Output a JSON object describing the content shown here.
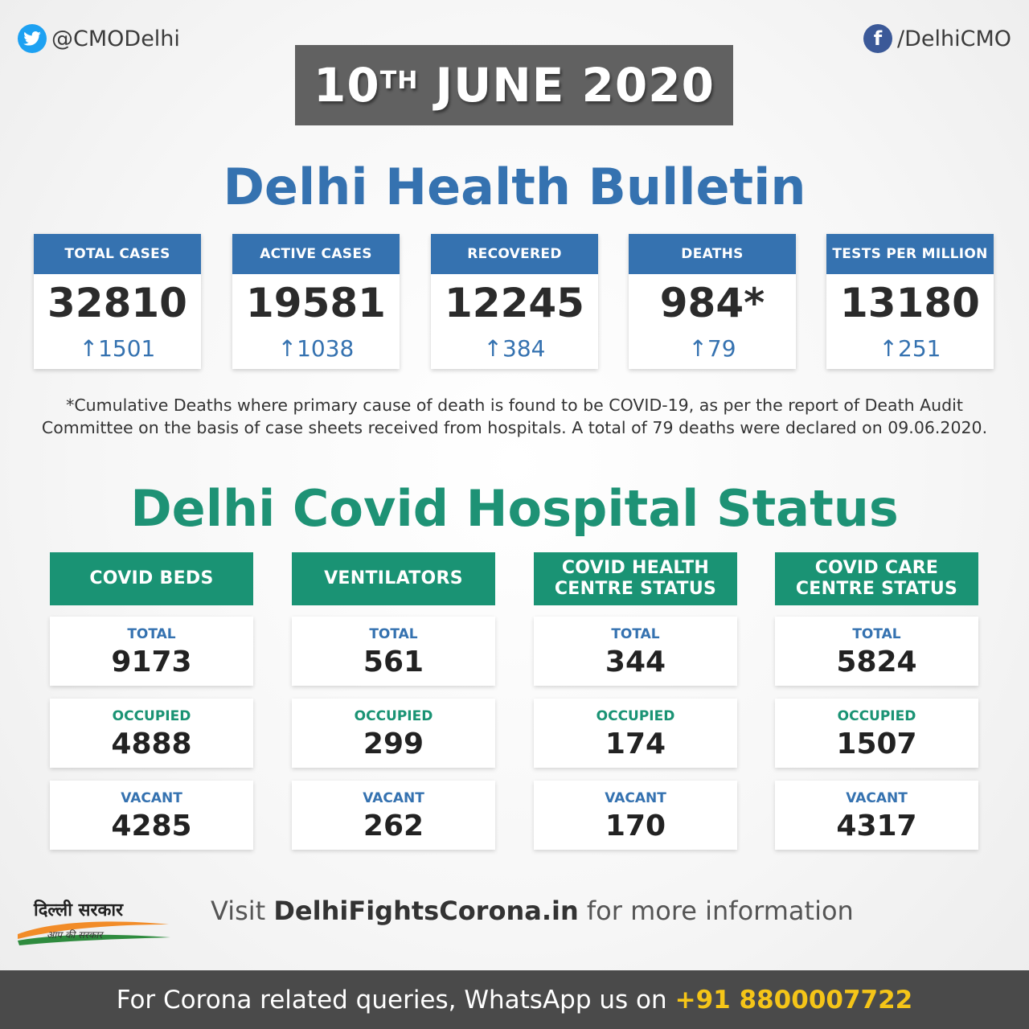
{
  "header": {
    "twitter_handle": "@CMODelhi",
    "facebook_handle": "/DelhiCMO",
    "twitter_icon": "twitter-icon",
    "facebook_icon": "facebook-icon"
  },
  "date": {
    "day": "10",
    "suffix": "TH",
    "month_year": "JUNE 2020"
  },
  "bulletin": {
    "title": "Delhi Health Bulletin",
    "arrow": "↑",
    "stats": [
      {
        "label": "TOTAL CASES",
        "value": "32810",
        "delta": "1501"
      },
      {
        "label": "ACTIVE CASES",
        "value": "19581",
        "delta": "1038"
      },
      {
        "label": "RECOVERED",
        "value": "12245",
        "delta": "384"
      },
      {
        "label": "DEATHS",
        "value": "984*",
        "delta": "79"
      },
      {
        "label": "TESTS PER MILLION",
        "value": "13180",
        "delta": "251"
      }
    ],
    "footnote_line1": "*Cumulative Deaths where primary cause of death is found to be COVID-19, as per  the report of Death Audit",
    "footnote_line2": "Committee on the basis of case sheets received from hospitals. A total of 79 deaths were declared on 09.06.2020."
  },
  "hospital": {
    "title": "Delhi Covid Hospital Status",
    "labels": {
      "total": "TOTAL",
      "occupied": "OCCUPIED",
      "vacant": "VACANT"
    },
    "columns": [
      {
        "head1": "COVID BEDS",
        "head2": "",
        "total": "9173",
        "occupied": "4888",
        "vacant": "4285"
      },
      {
        "head1": "VENTILATORS",
        "head2": "",
        "total": "561",
        "occupied": "299",
        "vacant": "262"
      },
      {
        "head1": "COVID HEALTH",
        "head2": "CENTRE STATUS",
        "total": "344",
        "occupied": "174",
        "vacant": "170"
      },
      {
        "head1": "COVID CARE",
        "head2": "CENTRE STATUS",
        "total": "5824",
        "occupied": "1507",
        "vacant": "4317"
      }
    ]
  },
  "logo": {
    "text": "दिल्ली सरकार",
    "subtext": "आप की सरकार"
  },
  "visit": {
    "prefix": "Visit ",
    "site": "DelhiFightsCorona.in",
    "suffix": " for more information"
  },
  "footer": {
    "text": "For Corona related queries, WhatsApp us on",
    "phone": "+91 8800007722"
  },
  "colors": {
    "blue": "#3572b0",
    "green": "#1a9374",
    "yellow": "#f5c518",
    "gray": "#616161"
  }
}
